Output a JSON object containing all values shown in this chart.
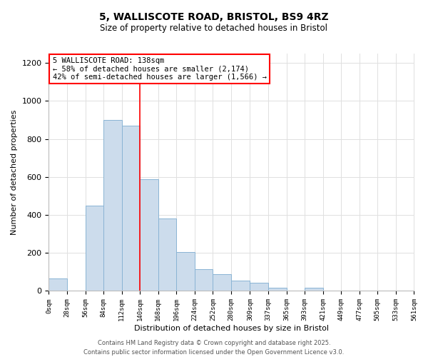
{
  "title": "5, WALLISCOTE ROAD, BRISTOL, BS9 4RZ",
  "subtitle": "Size of property relative to detached houses in Bristol",
  "xlabel": "Distribution of detached houses by size in Bristol",
  "ylabel": "Number of detached properties",
  "bar_edges": [
    0,
    28,
    56,
    84,
    112,
    140,
    168,
    196,
    224,
    252,
    280,
    309,
    337,
    365,
    393,
    421,
    449,
    477,
    505,
    533,
    561
  ],
  "bar_heights": [
    65,
    0,
    450,
    900,
    870,
    590,
    380,
    205,
    115,
    90,
    55,
    45,
    15,
    0,
    15,
    0,
    0,
    0,
    0,
    0
  ],
  "bar_color": "#ccdcec",
  "bar_edgecolor": "#8ab4d4",
  "vline_x": 140,
  "vline_color": "red",
  "annotation_line1": "5 WALLISCOTE ROAD: 138sqm",
  "annotation_line2": "← 58% of detached houses are smaller (2,174)",
  "annotation_line3": "42% of semi-detached houses are larger (1,566) →",
  "ylim": [
    0,
    1250
  ],
  "yticks": [
    0,
    200,
    400,
    600,
    800,
    1000,
    1200
  ],
  "tick_labels": [
    "0sqm",
    "28sqm",
    "56sqm",
    "84sqm",
    "112sqm",
    "140sqm",
    "168sqm",
    "196sqm",
    "224sqm",
    "252sqm",
    "280sqm",
    "309sqm",
    "337sqm",
    "365sqm",
    "393sqm",
    "421sqm",
    "449sqm",
    "477sqm",
    "505sqm",
    "533sqm",
    "561sqm"
  ],
  "footer_text": "Contains HM Land Registry data © Crown copyright and database right 2025.\nContains public sector information licensed under the Open Government Licence v3.0.",
  "bg_color": "#ffffff",
  "grid_color": "#e0e0e0",
  "title_fontsize": 10,
  "subtitle_fontsize": 8.5,
  "ylabel_fontsize": 8,
  "xlabel_fontsize": 8,
  "ytick_fontsize": 8,
  "xtick_fontsize": 6.5,
  "annot_fontsize": 7.5,
  "footer_fontsize": 6
}
